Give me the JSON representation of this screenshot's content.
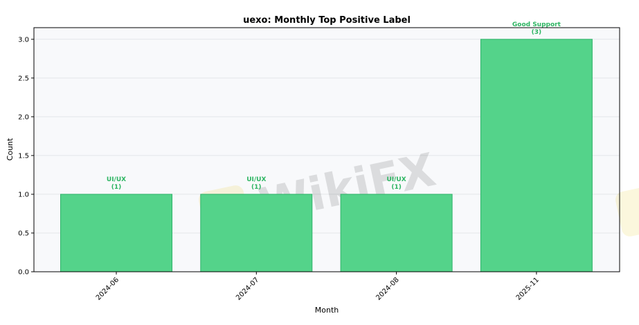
{
  "chart_data": {
    "type": "bar",
    "title": "uexo: Monthly Top Positive Label",
    "xlabel": "Month",
    "ylabel": "Count",
    "categories": [
      "2024-06",
      "2024-07",
      "2024-08",
      "2025-11"
    ],
    "values": [
      1,
      1,
      1,
      3
    ],
    "bar_labels": [
      {
        "label": "UI/UX",
        "count": "(1)"
      },
      {
        "label": "UI/UX",
        "count": "(1)"
      },
      {
        "label": "UI/UX",
        "count": "(1)"
      },
      {
        "label": "Good Support",
        "count": "(3)"
      }
    ],
    "y_ticks": [
      "0.0",
      "0.5",
      "1.0",
      "1.5",
      "2.0",
      "2.5",
      "3.0"
    ],
    "ylim": [
      0,
      3.15
    ],
    "grid": "horizontal",
    "colors": {
      "bar_fill": "#54d38a",
      "bar_edge": "#2fb36a",
      "label_text": "#2db562",
      "plot_background": "#f8f9fb",
      "grid": "#e3e6ea"
    },
    "watermark": "WikiFX"
  }
}
